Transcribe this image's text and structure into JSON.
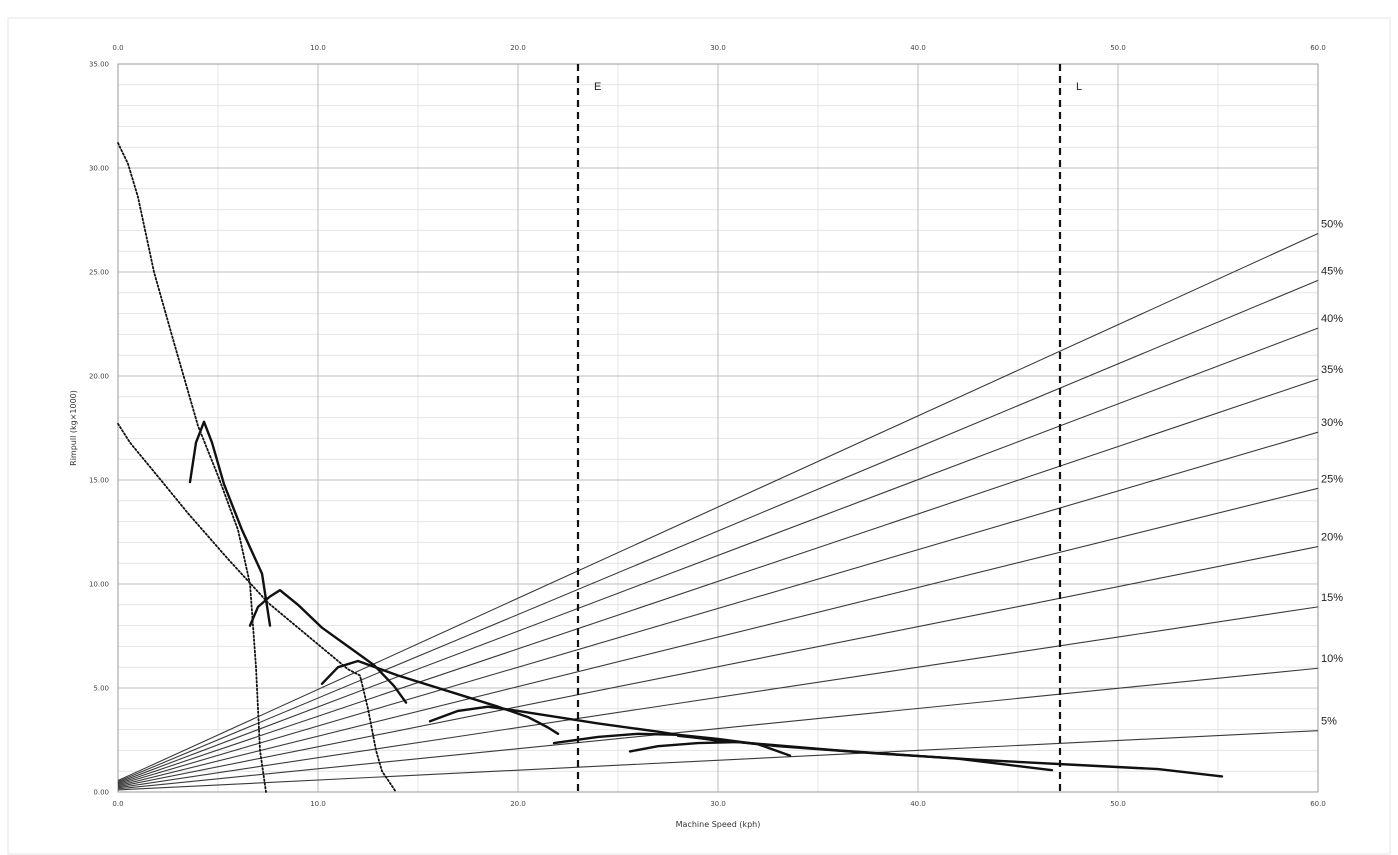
{
  "chart_data": {
    "type": "line",
    "xlabel": "Machine Speed (kph)",
    "ylabel": "Rimpull (kg×1000)",
    "xlim": [
      0,
      60
    ],
    "ylim": [
      0,
      35
    ],
    "x_ticks": [
      "0.0",
      "10.0",
      "20.0",
      "30.0",
      "40.0",
      "50.0",
      "60.0"
    ],
    "y_ticks": [
      "0.00",
      "5.00",
      "10.00",
      "15.00",
      "20.00",
      "25.00",
      "30.00",
      "35.00"
    ],
    "grid": true,
    "x_axis_top": true,
    "speed_markers": [
      {
        "label": "E",
        "x": 23.0
      },
      {
        "label": "L",
        "x": 47.1
      }
    ],
    "grade_lines": [
      {
        "label": "5%",
        "x": [
          0,
          60
        ],
        "y": [
          0.1,
          2.95
        ]
      },
      {
        "label": "10%",
        "x": [
          0,
          60
        ],
        "y": [
          0.15,
          5.95
        ]
      },
      {
        "label": "15%",
        "x": [
          0,
          60
        ],
        "y": [
          0.2,
          8.9
        ]
      },
      {
        "label": "20%",
        "x": [
          0,
          60
        ],
        "y": [
          0.25,
          11.8
        ]
      },
      {
        "label": "25%",
        "x": [
          0,
          60
        ],
        "y": [
          0.3,
          14.6
        ]
      },
      {
        "label": "30%",
        "x": [
          0,
          60
        ],
        "y": [
          0.35,
          17.3
        ]
      },
      {
        "label": "35%",
        "x": [
          0,
          60
        ],
        "y": [
          0.4,
          19.85
        ]
      },
      {
        "label": "40%",
        "x": [
          0,
          60
        ],
        "y": [
          0.45,
          22.3
        ]
      },
      {
        "label": "45%",
        "x": [
          0,
          60
        ],
        "y": [
          0.5,
          24.6
        ]
      },
      {
        "label": "50%",
        "x": [
          0,
          60
        ],
        "y": [
          0.55,
          26.85
        ]
      }
    ],
    "rimpull_curves": [
      {
        "x": [
          3.6,
          3.9,
          4.3,
          4.7,
          5.3,
          6.2,
          7.2,
          7.6
        ],
        "y": [
          14.9,
          16.8,
          17.8,
          16.8,
          14.8,
          12.6,
          10.5,
          8.0
        ]
      },
      {
        "x": [
          6.6,
          7.0,
          7.6,
          8.1,
          9.0,
          10.2,
          11.5,
          12.8,
          13.8,
          14.4
        ],
        "y": [
          8.0,
          8.9,
          9.4,
          9.7,
          9.0,
          7.9,
          7.0,
          6.1,
          5.1,
          4.3
        ]
      },
      {
        "x": [
          10.2,
          11.0,
          12.0,
          14.0,
          17.0,
          19.0,
          20.5,
          21.5,
          22.0
        ],
        "y": [
          5.2,
          6.0,
          6.3,
          5.6,
          4.7,
          4.1,
          3.6,
          3.1,
          2.8
        ]
      },
      {
        "x": [
          15.6,
          17.0,
          18.5,
          20.0,
          24.0,
          27.0,
          29.0,
          30.5
        ],
        "y": [
          3.4,
          3.9,
          4.1,
          3.9,
          3.3,
          2.9,
          2.6,
          2.4
        ]
      },
      {
        "x": [
          21.8,
          24.0,
          26.0,
          28.0,
          30.0,
          32.0,
          33.6
        ],
        "y": [
          2.35,
          2.65,
          2.8,
          2.75,
          2.55,
          2.3,
          1.75
        ]
      },
      {
        "x": [
          25.6,
          27.0,
          29.0,
          31.0,
          36.0,
          42.0,
          46.7
        ],
        "y": [
          1.95,
          2.2,
          2.35,
          2.4,
          2.0,
          1.6,
          1.05
        ]
      },
      {
        "x": [
          28.0,
          33.0,
          38.0,
          43.0,
          48.0,
          52.0,
          55.2
        ],
        "y": [
          2.7,
          2.2,
          1.85,
          1.55,
          1.3,
          1.1,
          0.75
        ]
      }
    ],
    "retarder_curves": [
      {
        "x": [
          0.0,
          0.5,
          1.0,
          1.8,
          2.8,
          4.0,
          5.0,
          6.0,
          6.6,
          6.9,
          7.1,
          7.4
        ],
        "y": [
          31.2,
          30.2,
          28.6,
          25.0,
          21.6,
          17.6,
          15.2,
          12.6,
          10.0,
          6.0,
          2.0,
          0.0
        ]
      },
      {
        "x": [
          0.0,
          0.6,
          1.8,
          3.5,
          5.5,
          7.5,
          9.5,
          11.5,
          12.1,
          12.5,
          12.9,
          13.2,
          13.9
        ],
        "y": [
          17.7,
          16.8,
          15.4,
          13.4,
          11.2,
          9.1,
          7.5,
          5.9,
          5.6,
          4.0,
          2.0,
          1.0,
          0.0
        ]
      }
    ]
  }
}
